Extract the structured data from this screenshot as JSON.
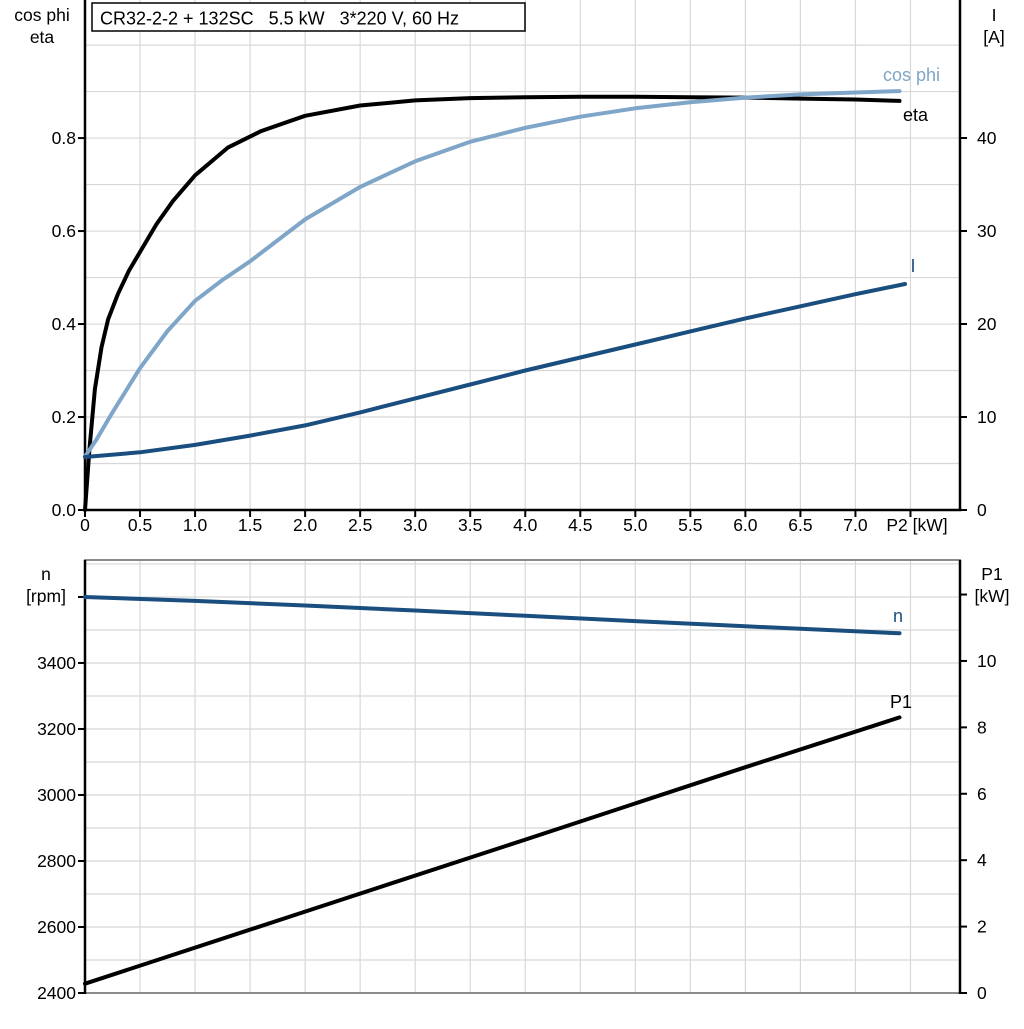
{
  "title": "CR32-2-2 + 132SC   5.5 kW   3*220 V, 60 Hz",
  "colors": {
    "cos_phi": "#7FA6C8",
    "eta": "#000000",
    "current": "#1A4E7F",
    "speed": "#1A4E7F",
    "p1": "#000000",
    "grid": "#D8D8D8",
    "axis": "#000000",
    "border": "#8C8C8C",
    "text": "#000000"
  },
  "chart_data": [
    {
      "id": "top",
      "type": "line",
      "xlabel": "P2 [kW]",
      "xlim": [
        0,
        7.95
      ],
      "x_ticks": {
        "values": [
          0,
          0.5,
          1.0,
          1.5,
          2.0,
          2.5,
          3.0,
          3.5,
          4.0,
          4.5,
          5.0,
          5.5,
          6.0,
          6.5,
          7.0
        ],
        "labels": [
          "0",
          "0.5",
          "1.0",
          "1.5",
          "2.0",
          "2.5",
          "3.0",
          "3.5",
          "4.0",
          "4.5",
          "5.0",
          "5.5",
          "6.0",
          "6.5",
          "7.0"
        ],
        "unit_tick": 7.5
      },
      "grid": {
        "x_step": 0.5,
        "left_step": 0.1
      },
      "left_axis": {
        "name_lines": [
          "cos phi",
          "eta"
        ],
        "lim": [
          0,
          1.097
        ],
        "ticks": {
          "values": [
            0.0,
            0.2,
            0.4,
            0.6,
            0.8
          ],
          "labels": [
            "0.0",
            "0.2",
            "0.4",
            "0.6",
            "0.8"
          ]
        }
      },
      "right_axis": {
        "name_lines": [
          "I",
          "[A]"
        ],
        "lim": [
          0,
          54.84
        ],
        "ticks": {
          "values": [
            0,
            10,
            20,
            30,
            40
          ],
          "labels": [
            "0",
            "10",
            "20",
            "30",
            "40"
          ]
        }
      },
      "series": [
        {
          "name": "eta",
          "axis": "left",
          "color_key": "eta",
          "x": [
            0,
            0.04,
            0.09,
            0.15,
            0.21,
            0.3,
            0.4,
            0.5,
            0.65,
            0.8,
            1.0,
            1.3,
            1.6,
            2.0,
            2.5,
            3.0,
            3.5,
            4.0,
            4.5,
            5.0,
            5.5,
            6.0,
            6.5,
            7.0,
            7.4
          ],
          "y": [
            0,
            0.13,
            0.26,
            0.35,
            0.41,
            0.465,
            0.515,
            0.555,
            0.615,
            0.665,
            0.72,
            0.78,
            0.815,
            0.848,
            0.87,
            0.881,
            0.886,
            0.888,
            0.889,
            0.889,
            0.888,
            0.887,
            0.885,
            0.883,
            0.88
          ]
        },
        {
          "name": "cos phi",
          "axis": "left",
          "color_key": "cos_phi",
          "x": [
            0,
            0.1,
            0.25,
            0.5,
            0.75,
            1.0,
            1.25,
            1.5,
            2.0,
            2.5,
            3.0,
            3.5,
            4.0,
            4.5,
            5.0,
            5.5,
            6.0,
            6.5,
            7.0,
            7.4
          ],
          "y": [
            0.115,
            0.15,
            0.21,
            0.305,
            0.385,
            0.45,
            0.495,
            0.535,
            0.625,
            0.695,
            0.75,
            0.792,
            0.822,
            0.846,
            0.864,
            0.877,
            0.887,
            0.894,
            0.898,
            0.901
          ]
        },
        {
          "name": "I",
          "axis": "right",
          "color_key": "current",
          "x": [
            0,
            0.5,
            1.0,
            1.5,
            2.0,
            2.5,
            3.0,
            3.5,
            4.0,
            4.5,
            5.0,
            5.5,
            6.0,
            6.5,
            7.0,
            7.45
          ],
          "y": [
            5.7,
            6.2,
            7.0,
            8.0,
            9.1,
            10.5,
            12.0,
            13.5,
            15.0,
            16.4,
            17.8,
            19.2,
            20.6,
            21.9,
            23.2,
            24.3
          ]
        }
      ]
    },
    {
      "id": "bottom",
      "type": "line",
      "xlabel": "",
      "xlim": [
        0,
        7.95
      ],
      "x_ticks": {
        "values": [],
        "labels": [],
        "unit_tick": null
      },
      "grid": {
        "x_step": 0.5,
        "left_step": 100
      },
      "left_axis": {
        "name_lines": [
          "n",
          "[rpm]"
        ],
        "lim": [
          2400,
          3712
        ],
        "unit_tick": 3600,
        "ticks": {
          "values": [
            3400,
            3200,
            3000,
            2800,
            2600,
            2400
          ],
          "labels": [
            "3400",
            "3200",
            "3000",
            "2800",
            "2600",
            "2400"
          ]
        }
      },
      "right_axis": {
        "name_lines": [
          "P1",
          "[kW]"
        ],
        "lim": [
          0,
          13.04
        ],
        "unit_tick": 12,
        "ticks": {
          "values": [
            10,
            8,
            6,
            4,
            2,
            0
          ],
          "labels": [
            "10",
            "8",
            "6",
            "4",
            "2",
            "0"
          ]
        }
      },
      "series": [
        {
          "name": "n",
          "axis": "left",
          "color_key": "speed",
          "x": [
            0,
            1,
            2,
            3,
            4,
            5,
            6,
            7,
            7.4
          ],
          "y": [
            3600,
            3588,
            3574,
            3559,
            3543,
            3527,
            3511,
            3496,
            3490
          ]
        },
        {
          "name": "P1",
          "axis": "right",
          "color_key": "p1",
          "x": [
            0,
            2,
            4,
            6,
            7.4
          ],
          "y": [
            0.28,
            2.45,
            4.62,
            6.8,
            8.3
          ]
        }
      ]
    }
  ]
}
